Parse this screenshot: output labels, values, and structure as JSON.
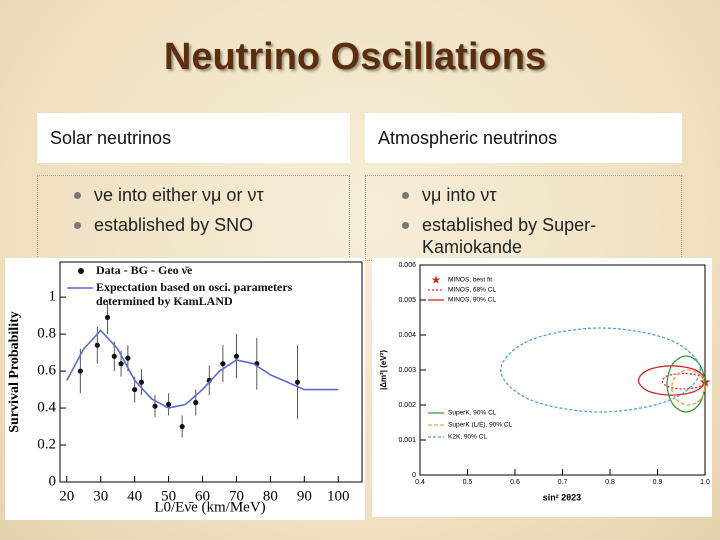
{
  "title": "Neutrino Oscillations",
  "columns": [
    {
      "heading": "Solar neutrinos",
      "bullets": [
        "νe into either νμ or ντ",
        "established by SNO"
      ]
    },
    {
      "heading": "Atmospheric neutrinos",
      "bullets": [
        "νμ into ντ",
        "established by Super-Kamiokande"
      ]
    }
  ],
  "chart_data": [
    {
      "type": "scatter",
      "xlabel": "L0/Eν̄e (km/MeV)",
      "ylabel": "Survival Probability",
      "xlim": [
        18,
        107
      ],
      "ylim": [
        0,
        1.19
      ],
      "xticks": [
        20,
        30,
        40,
        50,
        60,
        70,
        80,
        90,
        100
      ],
      "yticks": [
        0,
        0.2,
        0.4,
        0.6,
        0.8,
        1
      ],
      "series": [
        {
          "name": "Data - BG - Geo ν̄e",
          "color": "#111111",
          "x": [
            24,
            29,
            32,
            34,
            36,
            38,
            40,
            42,
            46,
            50,
            54,
            58,
            62,
            66,
            70,
            76,
            88
          ],
          "values": [
            0.6,
            0.74,
            0.89,
            0.68,
            0.64,
            0.67,
            0.5,
            0.54,
            0.41,
            0.42,
            0.3,
            0.43,
            0.55,
            0.64,
            0.68,
            0.64,
            0.54
          ],
          "errors": [
            0.12,
            0.1,
            0.09,
            0.08,
            0.07,
            0.07,
            0.07,
            0.07,
            0.06,
            0.06,
            0.06,
            0.07,
            0.08,
            0.1,
            0.12,
            0.14,
            0.2
          ]
        },
        {
          "name": "Expectation based on osci. parameters determined by KamLAND",
          "color": "#5a6bd6",
          "x": [
            20,
            25,
            30,
            35,
            40,
            45,
            50,
            55,
            60,
            65,
            70,
            75,
            80,
            90,
            100
          ],
          "values": [
            0.55,
            0.72,
            0.82,
            0.72,
            0.55,
            0.45,
            0.4,
            0.42,
            0.5,
            0.6,
            0.66,
            0.64,
            0.58,
            0.5,
            0.5
          ]
        }
      ]
    },
    {
      "type": "contour",
      "xlabel": "sin² 2θ23",
      "ylabel": "|Δm²| (eV²)",
      "xlim": [
        0.4,
        1.0
      ],
      "ylim": [
        0,
        0.006
      ],
      "xticks": [
        {
          "value": 0.4,
          "label": "0.4"
        },
        0.5,
        0.6,
        0.7,
        0.8,
        0.9,
        {
          "value": 1.0,
          "label": "1.0"
        }
      ],
      "yticks": [
        0,
        0.001,
        0.002,
        0.003,
        0.004,
        0.005,
        0.006
      ],
      "series": [
        {
          "name": "MINOS, best fit",
          "color": "#d62728",
          "marker": "star",
          "x": [
            1.0
          ],
          "values": [
            0.00265
          ]
        },
        {
          "name": "MINOS, 68% CL",
          "color": "#d62728",
          "dash": "2,2",
          "x": [
            1.0,
            0.987,
            0.955,
            0.923,
            0.91,
            0.923,
            0.955,
            0.987
          ],
          "values": [
            0.00268,
            0.00284,
            0.0029,
            0.00284,
            0.00268,
            0.00252,
            0.00246,
            0.00252
          ]
        },
        {
          "name": "MINOS, 90% CL",
          "color": "#d62728",
          "x": [
            1.0,
            0.98,
            0.93,
            0.88,
            0.86,
            0.88,
            0.93,
            0.98
          ],
          "values": [
            0.0027,
            0.003,
            0.00312,
            0.003,
            0.0027,
            0.0024,
            0.00228,
            0.0024
          ]
        },
        {
          "name": "SuperK, 90% CL",
          "color": "#2ca02c",
          "x": [
            1.0,
            0.988,
            0.96,
            0.932,
            0.92,
            0.932,
            0.96,
            0.988
          ],
          "values": [
            0.0026,
            0.00317,
            0.0034,
            0.00317,
            0.0026,
            0.00203,
            0.0018,
            0.00203
          ]
        },
        {
          "name": "SuperK (L/E), 90% CL",
          "color": "#e8a33d",
          "dash": "4,2",
          "x": [
            1.0,
            0.99,
            0.965,
            0.94,
            0.93,
            0.94,
            0.965,
            0.99
          ],
          "values": [
            0.0025,
            0.00285,
            0.003,
            0.00285,
            0.0025,
            0.00215,
            0.002,
            0.00215
          ]
        },
        {
          "name": "K2K, 90% CL",
          "color": "#4aa3df",
          "dash": "3,2",
          "x": [
            0.99,
            0.928,
            0.78,
            0.632,
            0.57,
            0.632,
            0.78,
            0.928
          ],
          "values": [
            0.003,
            0.00385,
            0.0042,
            0.00385,
            0.003,
            0.00215,
            0.0018,
            0.00215
          ]
        }
      ]
    }
  ]
}
